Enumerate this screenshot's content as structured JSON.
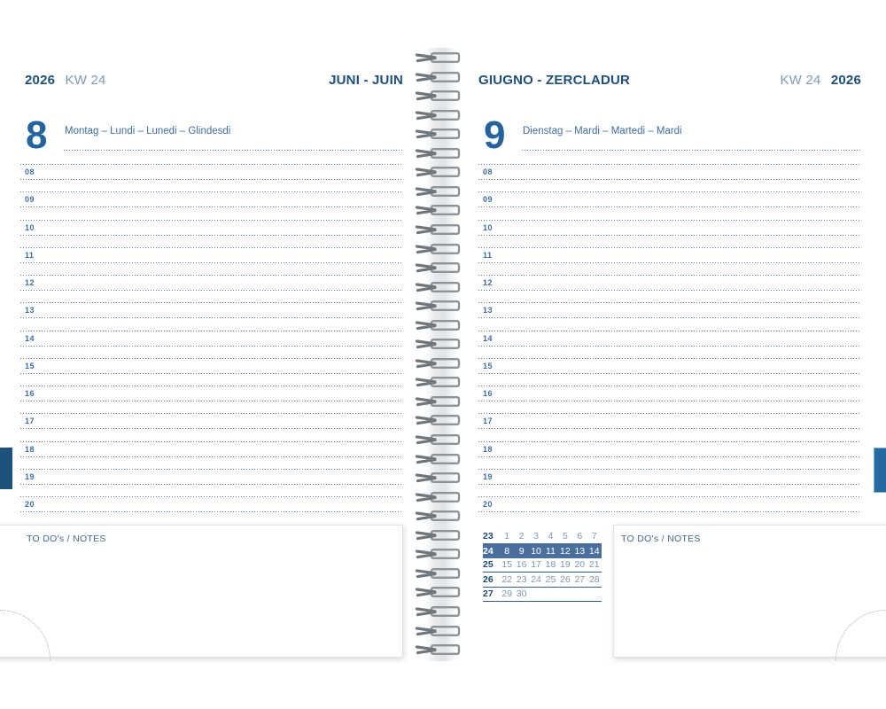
{
  "left_page": {
    "year": "2026",
    "week_label": "KW 24",
    "month_title": "JUNI - JUIN",
    "day_number": "8",
    "day_names": "Montag – Lundi – Lunedi – Glindesdi",
    "todo_label": "TO DO's / NOTES"
  },
  "right_page": {
    "month_title": "GIUGNO - ZERCLADUR",
    "week_label": "KW 24",
    "year": "2026",
    "day_number": "9",
    "day_names": "Dienstag – Mardi – Martedi – Mardi",
    "todo_label": "TO DO's / NOTES"
  },
  "hours": [
    "08",
    "09",
    "10",
    "11",
    "12",
    "13",
    "14",
    "15",
    "16",
    "17",
    "18",
    "19",
    "20"
  ],
  "mini_calendar": {
    "weeks": [
      {
        "week": "23",
        "days": [
          "1",
          "2",
          "3",
          "4",
          "5",
          "6",
          "7"
        ],
        "highlight": false
      },
      {
        "week": "24",
        "days": [
          "8",
          "9",
          "10",
          "11",
          "12",
          "13",
          "14"
        ],
        "highlight": true
      },
      {
        "week": "25",
        "days": [
          "15",
          "16",
          "17",
          "18",
          "19",
          "20",
          "21"
        ],
        "highlight": false
      },
      {
        "week": "26",
        "days": [
          "22",
          "23",
          "24",
          "25",
          "26",
          "27",
          "28"
        ],
        "highlight": false
      },
      {
        "week": "27",
        "days": [
          "29",
          "30",
          "",
          "",
          "",
          "",
          ""
        ],
        "highlight": false
      }
    ]
  },
  "colors": {
    "header_dark_blue": "#1d4f7c",
    "day_number_blue": "#25639c",
    "week_label_blue": "#8299b1",
    "dotted_line_blue": "#3d689d",
    "calendar_highlight_bg": "#4b6f9d",
    "calendar_date_blue": "#7d98b5",
    "left_tab_blue": "#1c5179",
    "right_tab_blue": "#2569a3",
    "spiral_gray": "#8d9399"
  }
}
